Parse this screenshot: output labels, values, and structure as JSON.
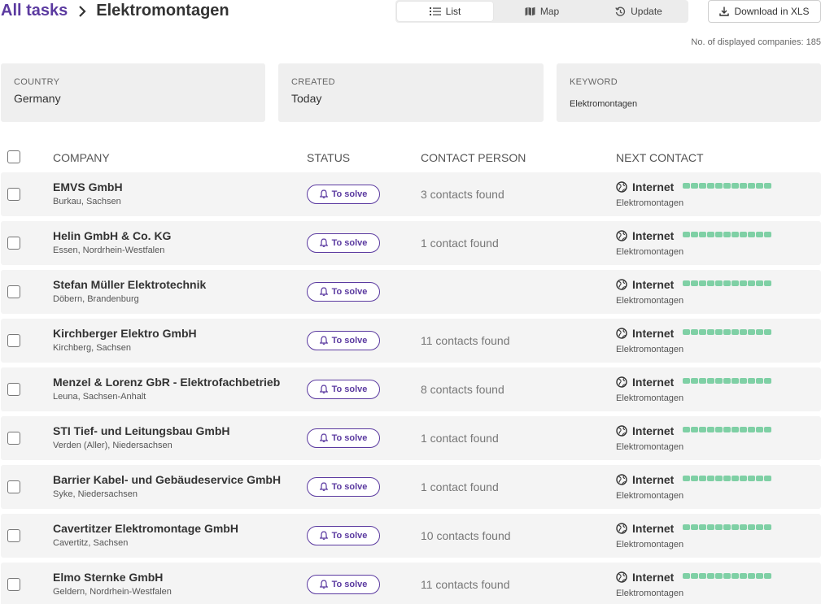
{
  "breadcrumb": {
    "root": "All tasks",
    "current": "Elektromontagen"
  },
  "view_toggle": {
    "list": "List",
    "map": "Map",
    "update": "Update",
    "active": "list"
  },
  "download": {
    "label": "Download in XLS"
  },
  "count_line": "No. of displayed companies: 185",
  "filters": {
    "country": {
      "label": "COUNTRY",
      "value": "Germany"
    },
    "created": {
      "label": "CREATED",
      "value": "Today"
    },
    "keyword": {
      "label": "KEYWORD",
      "value": "Elektromontagen"
    }
  },
  "table": {
    "headers": {
      "company": "COMPANY",
      "status": "STATUS",
      "contact": "CONTACT PERSON",
      "next": "NEXT CONTACT"
    },
    "rows": [
      {
        "name": "EMVS GmbH",
        "location": "Burkau, Sachsen",
        "status": "To solve",
        "contacts": "3 contacts found",
        "channel": "Internet",
        "keyword": "Elektromontagen"
      },
      {
        "name": "Helin GmbH & Co. KG",
        "location": "Essen, Nordrhein-Westfalen",
        "status": "To solve",
        "contacts": "1 contact found",
        "channel": "Internet",
        "keyword": "Elektromontagen"
      },
      {
        "name": "Stefan Müller Elektrotechnik",
        "location": "Döbern, Brandenburg",
        "status": "To solve",
        "contacts": "",
        "channel": "Internet",
        "keyword": "Elektromontagen"
      },
      {
        "name": "Kirchberger Elektro GmbH",
        "location": "Kirchberg, Sachsen",
        "status": "To solve",
        "contacts": "11 contacts found",
        "channel": "Internet",
        "keyword": "Elektromontagen"
      },
      {
        "name": "Menzel & Lorenz GbR - Elektrofachbetrieb",
        "location": "Leuna, Sachsen-Anhalt",
        "status": "To solve",
        "contacts": "8 contacts found",
        "channel": "Internet",
        "keyword": "Elektromontagen"
      },
      {
        "name": "STI Tief- und Leitungsbau GmbH",
        "location": "Verden (Aller), Niedersachsen",
        "status": "To solve",
        "contacts": "1 contact found",
        "channel": "Internet",
        "keyword": "Elektromontagen"
      },
      {
        "name": "Barrier Kabel- und Gebäudeservice GmbH",
        "location": "Syke, Niedersachsen",
        "status": "To solve",
        "contacts": "1 contact found",
        "channel": "Internet",
        "keyword": "Elektromontagen"
      },
      {
        "name": "Cavertitzer Elektromontage GmbH",
        "location": "Cavertitz, Sachsen",
        "status": "To solve",
        "contacts": "10 contacts found",
        "channel": "Internet",
        "keyword": "Elektromontagen"
      },
      {
        "name": "Elmo Sternke GmbH",
        "location": "Geldern, Nordrhein-Westfalen",
        "status": "To solve",
        "contacts": "11 contacts found",
        "channel": "Internet",
        "keyword": "Elektromontagen"
      }
    ]
  },
  "icons": {
    "chevron": "chevron-right-icon",
    "list": "list-icon",
    "map": "map-icon",
    "update": "refresh-clock-icon",
    "download": "download-icon",
    "status": "bell-icon",
    "channel": "globe-icon"
  },
  "colors": {
    "accent": "#5b3aa0",
    "progress": "#7fd0a5",
    "row_bg": "#f4f4f4",
    "filter_bg": "#efefef"
  }
}
